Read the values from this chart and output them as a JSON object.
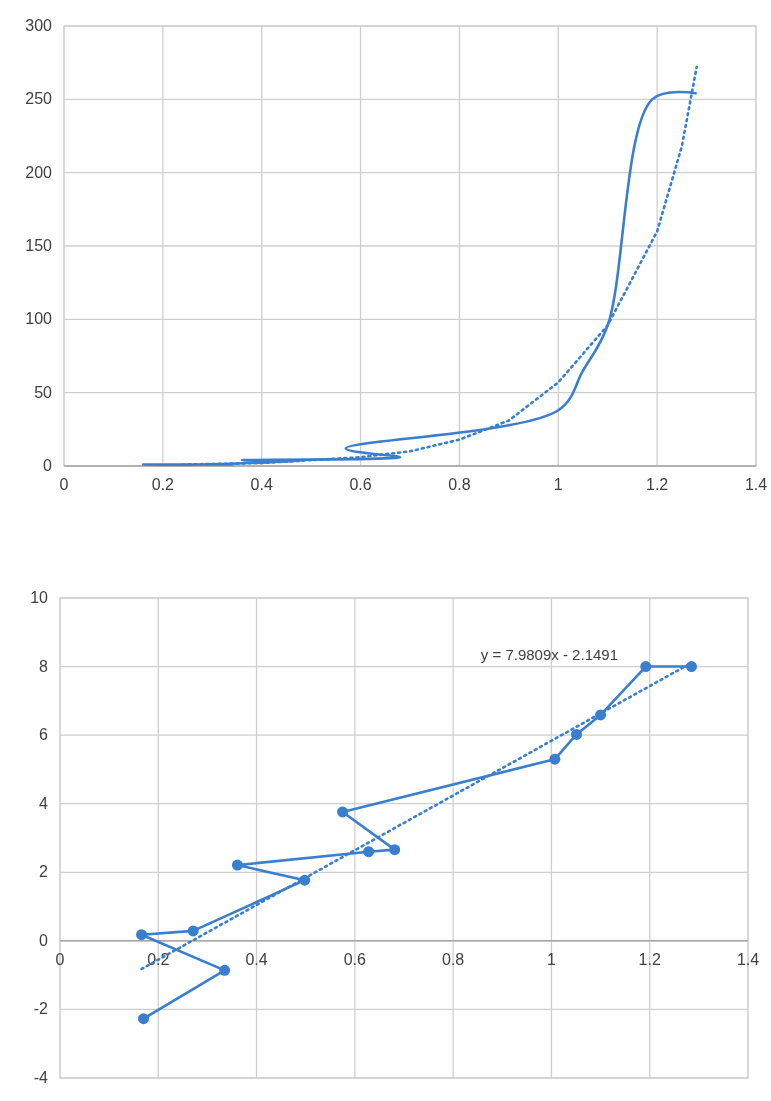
{
  "chart_data": [
    {
      "type": "line",
      "xlim": [
        0,
        1.4
      ],
      "ylim": [
        0,
        300
      ],
      "xticks": [
        0,
        0.2,
        0.4,
        0.6,
        0.8,
        1,
        1.2,
        1.4
      ],
      "yticks": [
        0,
        50,
        100,
        150,
        200,
        250,
        300
      ],
      "grid": true,
      "marker": "none",
      "series": [
        {
          "color": "#3a7fcf",
          "line_style": "solid",
          "x": [
            0.17,
            0.34,
            0.16,
            0.27,
            0.5,
            0.36,
            0.63,
            0.68,
            0.57,
            1.0,
            1.05,
            1.1,
            1.19,
            1.28
          ],
          "values": [
            1,
            1,
            1,
            1,
            4,
            4,
            5,
            6,
            12,
            38,
            65,
            96,
            250,
            254
          ]
        },
        {
          "color": "#3a7fcf",
          "line_style": "dotted",
          "x": [
            0.24,
            0.4,
            0.5,
            0.6,
            0.7,
            0.8,
            0.9,
            1.0,
            1.1,
            1.2,
            1.25,
            1.28
          ],
          "values": [
            1,
            2,
            4,
            6,
            10,
            18,
            31,
            57,
            96,
            160,
            218,
            272
          ]
        }
      ]
    },
    {
      "type": "line",
      "xlim": [
        0,
        1.4
      ],
      "ylim": [
        -4,
        10
      ],
      "xticks": [
        0,
        0.2,
        0.4,
        0.6,
        0.8,
        1,
        1.2,
        1.4
      ],
      "yticks": [
        -4,
        -2,
        0,
        2,
        4,
        6,
        8,
        10
      ],
      "grid": true,
      "marker": "circle",
      "annotations": [
        "y = 7.9809x - 2.1491"
      ],
      "series": [
        {
          "color": "#3a7fcf",
          "line_style": "solid",
          "x": [
            0.17,
            0.335,
            0.166,
            0.271,
            0.498,
            0.361,
            0.628,
            0.681,
            0.575,
            1.007,
            1.051,
            1.1,
            1.192,
            1.285
          ],
          "values": [
            -2.27,
            -0.86,
            0.18,
            0.29,
            1.77,
            2.21,
            2.6,
            2.66,
            3.76,
            5.3,
            6.02,
            6.59,
            8.0,
            8.0
          ]
        },
        {
          "color": "#3a7fcf",
          "line_style": "dotted",
          "marker": "none",
          "x": [
            0.166,
            1.285
          ],
          "values": [
            -0.82,
            8.11
          ]
        }
      ]
    }
  ]
}
